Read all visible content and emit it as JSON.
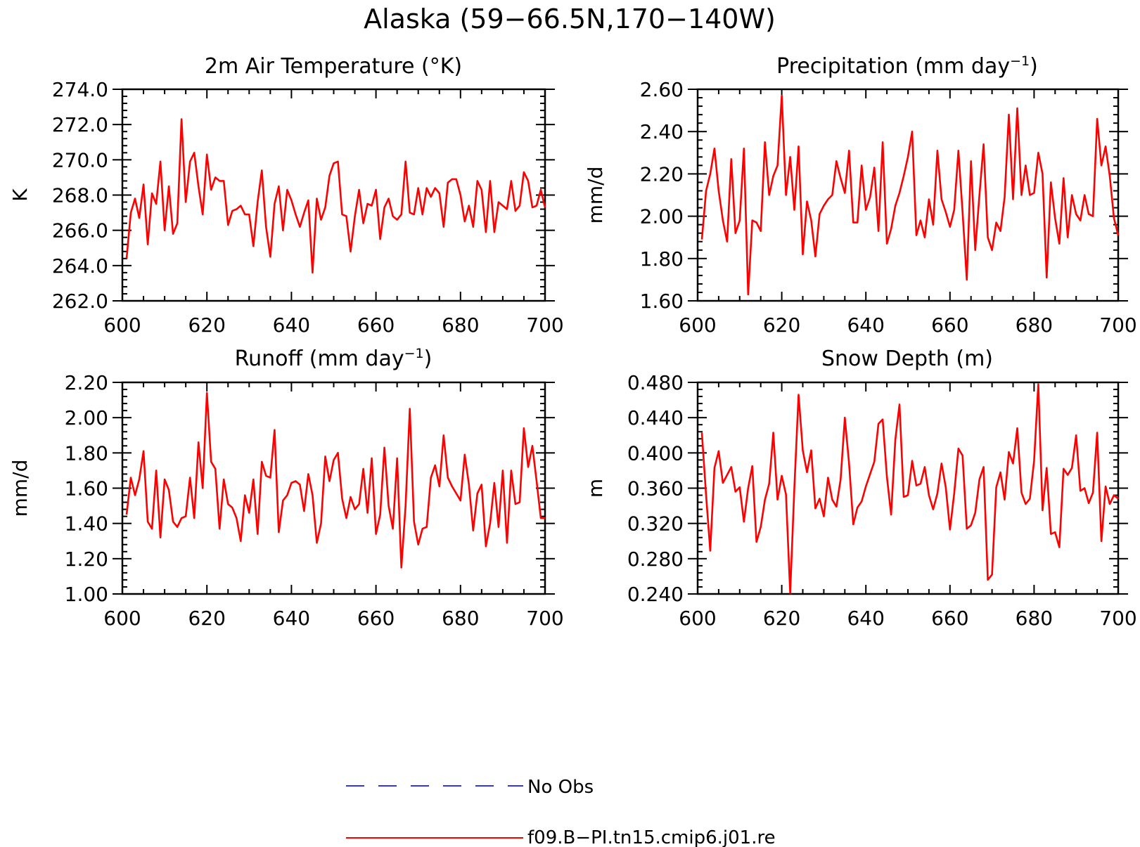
{
  "figure": {
    "title": "Alaska (59−66.5N,170−140W)"
  },
  "legend": {
    "placement": "bottom-center",
    "entries": [
      {
        "label": "No Obs",
        "color": "#3333ff",
        "style": "dashed"
      },
      {
        "label": "f09.B−PI.tn15.cmip6.j01.re",
        "color": "#ff0000",
        "style": "solid"
      }
    ]
  },
  "chart_data": [
    {
      "type": "line",
      "title": "2m Air Temperature (°K)",
      "title_sup": "",
      "title_tail": "",
      "ylabel": "K",
      "xlim": [
        600,
        700
      ],
      "ylim": [
        262.0,
        274.0
      ],
      "xticks": [
        600,
        620,
        640,
        660,
        680,
        700
      ],
      "yticks": [
        262.0,
        264.0,
        266.0,
        268.0,
        270.0,
        272.0,
        274.0
      ],
      "y_decimals": 1,
      "grid": false,
      "series": [
        {
          "color": "#ff0000",
          "x": [
            601,
            602,
            603,
            604,
            605,
            606,
            607,
            608,
            609,
            610,
            611,
            612,
            613,
            614,
            615,
            616,
            617,
            618,
            619,
            620,
            621,
            622,
            623,
            624,
            625,
            626,
            627,
            628,
            629,
            630,
            631,
            632,
            633,
            634,
            635,
            636,
            637,
            638,
            639,
            640,
            641,
            642,
            643,
            644,
            645,
            646,
            647,
            648,
            649,
            650,
            651,
            652,
            653,
            654,
            655,
            656,
            657,
            658,
            659,
            660,
            661,
            662,
            663,
            664,
            665,
            666,
            667,
            668,
            669,
            670,
            671,
            672,
            673,
            674,
            675,
            676,
            677,
            678,
            679,
            680,
            681,
            682,
            683,
            684,
            685,
            686,
            687,
            688,
            689,
            690,
            691,
            692,
            693,
            694,
            695,
            696,
            697,
            698,
            699,
            700
          ],
          "values": [
            264.4,
            267.0,
            267.8,
            266.7,
            268.6,
            265.2,
            268.1,
            267.5,
            269.9,
            266.0,
            268.5,
            265.8,
            266.4,
            272.3,
            267.6,
            269.9,
            270.4,
            268.5,
            266.9,
            270.3,
            268.3,
            269.0,
            268.8,
            268.8,
            266.3,
            267.1,
            267.2,
            267.4,
            266.9,
            266.9,
            265.1,
            267.6,
            269.4,
            266.2,
            264.5,
            267.5,
            268.5,
            266.0,
            268.3,
            267.7,
            266.9,
            266.2,
            267.0,
            267.7,
            263.6,
            267.8,
            266.6,
            267.3,
            269.1,
            269.8,
            269.9,
            266.9,
            266.8,
            264.8,
            266.8,
            268.3,
            266.4,
            267.5,
            267.4,
            268.3,
            265.5,
            267.3,
            267.8,
            266.8,
            266.6,
            266.9,
            269.9,
            267.0,
            266.9,
            268.4,
            266.9,
            268.4,
            267.9,
            268.4,
            268.1,
            266.2,
            268.7,
            268.9,
            268.9,
            268.0,
            266.5,
            267.4,
            266.2,
            268.8,
            268.3,
            265.9,
            268.8,
            265.9,
            267.6,
            267.4,
            267.2,
            268.8,
            267.1,
            267.4,
            269.3,
            268.8,
            267.3,
            267.4,
            268.3,
            267.3
          ]
        }
      ]
    },
    {
      "type": "line",
      "title": "Precipitation (mm day",
      "title_sup": "−1",
      "title_tail": ")",
      "ylabel": "mm/d",
      "xlim": [
        600,
        700
      ],
      "ylim": [
        1.6,
        2.6
      ],
      "xticks": [
        600,
        620,
        640,
        660,
        680,
        700
      ],
      "yticks": [
        1.6,
        1.8,
        2.0,
        2.2,
        2.4,
        2.6
      ],
      "y_decimals": 2,
      "grid": false,
      "series": [
        {
          "color": "#ff0000",
          "x": [
            601,
            602,
            603,
            604,
            605,
            606,
            607,
            608,
            609,
            610,
            611,
            612,
            613,
            614,
            615,
            616,
            617,
            618,
            619,
            620,
            621,
            622,
            623,
            624,
            625,
            626,
            627,
            628,
            629,
            630,
            631,
            632,
            633,
            634,
            635,
            636,
            637,
            638,
            639,
            640,
            641,
            642,
            643,
            644,
            645,
            646,
            647,
            648,
            649,
            650,
            651,
            652,
            653,
            654,
            655,
            656,
            657,
            658,
            659,
            660,
            661,
            662,
            663,
            664,
            665,
            666,
            667,
            668,
            669,
            670,
            671,
            672,
            673,
            674,
            675,
            676,
            677,
            678,
            679,
            680,
            681,
            682,
            683,
            684,
            685,
            686,
            687,
            688,
            689,
            690,
            691,
            692,
            693,
            694,
            695,
            696,
            697,
            698,
            699,
            700
          ],
          "values": [
            1.89,
            2.12,
            2.2,
            2.32,
            2.12,
            1.98,
            1.88,
            2.27,
            1.92,
            1.98,
            2.32,
            1.63,
            1.98,
            1.97,
            1.93,
            2.35,
            2.1,
            2.19,
            2.24,
            2.57,
            2.1,
            2.28,
            2.03,
            2.33,
            1.82,
            2.07,
            1.98,
            1.81,
            2.01,
            2.05,
            2.08,
            2.1,
            2.26,
            2.18,
            2.11,
            2.31,
            1.97,
            1.97,
            2.24,
            2.03,
            2.09,
            2.23,
            1.93,
            2.35,
            1.87,
            1.94,
            2.05,
            2.11,
            2.19,
            2.28,
            2.4,
            1.91,
            1.98,
            1.9,
            2.08,
            1.96,
            2.31,
            2.08,
            2.02,
            1.95,
            2.03,
            2.31,
            2.02,
            1.7,
            2.26,
            1.84,
            2.1,
            2.34,
            1.9,
            1.84,
            1.97,
            1.93,
            2.09,
            2.48,
            2.08,
            2.51,
            2.1,
            2.24,
            2.1,
            2.11,
            2.3,
            2.2,
            1.71,
            2.16,
            1.99,
            1.87,
            2.18,
            1.9,
            2.1,
            2.01,
            1.98,
            2.1,
            2.01,
            2.0,
            2.46,
            2.24,
            2.33,
            2.19,
            1.99,
            1.91
          ]
        }
      ]
    },
    {
      "type": "line",
      "title": "Runoff (mm day",
      "title_sup": "−1",
      "title_tail": ")",
      "ylabel": "mm/d",
      "xlim": [
        600,
        700
      ],
      "ylim": [
        1.0,
        2.2
      ],
      "xticks": [
        600,
        620,
        640,
        660,
        680,
        700
      ],
      "yticks": [
        1.0,
        1.2,
        1.4,
        1.6,
        1.8,
        2.0,
        2.2
      ],
      "y_decimals": 2,
      "grid": false,
      "series": [
        {
          "color": "#ff0000",
          "x": [
            601,
            602,
            603,
            604,
            605,
            606,
            607,
            608,
            609,
            610,
            611,
            612,
            613,
            614,
            615,
            616,
            617,
            618,
            619,
            620,
            621,
            622,
            623,
            624,
            625,
            626,
            627,
            628,
            629,
            630,
            631,
            632,
            633,
            634,
            635,
            636,
            637,
            638,
            639,
            640,
            641,
            642,
            643,
            644,
            645,
            646,
            647,
            648,
            649,
            650,
            651,
            652,
            653,
            654,
            655,
            656,
            657,
            658,
            659,
            660,
            661,
            662,
            663,
            664,
            665,
            666,
            667,
            668,
            669,
            670,
            671,
            672,
            673,
            674,
            675,
            676,
            677,
            678,
            679,
            680,
            681,
            682,
            683,
            684,
            685,
            686,
            687,
            688,
            689,
            690,
            691,
            692,
            693,
            694,
            695,
            696,
            697,
            698,
            699,
            700
          ],
          "values": [
            1.45,
            1.66,
            1.56,
            1.65,
            1.81,
            1.41,
            1.37,
            1.7,
            1.32,
            1.65,
            1.59,
            1.41,
            1.38,
            1.43,
            1.44,
            1.66,
            1.43,
            1.86,
            1.6,
            2.14,
            1.75,
            1.71,
            1.37,
            1.65,
            1.51,
            1.49,
            1.43,
            1.3,
            1.56,
            1.46,
            1.65,
            1.34,
            1.75,
            1.67,
            1.66,
            1.93,
            1.35,
            1.53,
            1.56,
            1.63,
            1.64,
            1.62,
            1.47,
            1.68,
            1.56,
            1.29,
            1.4,
            1.78,
            1.64,
            1.76,
            1.8,
            1.54,
            1.43,
            1.55,
            1.48,
            1.51,
            1.71,
            1.46,
            1.77,
            1.34,
            1.45,
            1.83,
            1.5,
            1.37,
            1.77,
            1.15,
            1.5,
            2.05,
            1.41,
            1.28,
            1.37,
            1.38,
            1.66,
            1.73,
            1.61,
            1.9,
            1.66,
            1.61,
            1.57,
            1.53,
            1.79,
            1.62,
            1.36,
            1.57,
            1.62,
            1.27,
            1.4,
            1.63,
            1.38,
            1.7,
            1.29,
            1.7,
            1.51,
            1.52,
            1.94,
            1.72,
            1.84,
            1.64,
            1.43,
            1.43
          ]
        }
      ]
    },
    {
      "type": "line",
      "title": "Snow Depth (m)",
      "title_sup": "",
      "title_tail": "",
      "ylabel": "m",
      "xlim": [
        600,
        700
      ],
      "ylim": [
        0.24,
        0.48
      ],
      "xticks": [
        600,
        620,
        640,
        660,
        680,
        700
      ],
      "yticks": [
        0.24,
        0.28,
        0.32,
        0.36,
        0.4,
        0.44,
        0.48
      ],
      "y_decimals": 3,
      "grid": false,
      "series": [
        {
          "color": "#ff0000",
          "x": [
            601,
            602,
            603,
            604,
            605,
            606,
            607,
            608,
            609,
            610,
            611,
            612,
            613,
            614,
            615,
            616,
            617,
            618,
            619,
            620,
            621,
            622,
            623,
            624,
            625,
            626,
            627,
            628,
            629,
            630,
            631,
            632,
            633,
            634,
            635,
            636,
            637,
            638,
            639,
            640,
            641,
            642,
            643,
            644,
            645,
            646,
            647,
            648,
            649,
            650,
            651,
            652,
            653,
            654,
            655,
            656,
            657,
            658,
            659,
            660,
            661,
            662,
            663,
            664,
            665,
            666,
            667,
            668,
            669,
            670,
            671,
            672,
            673,
            674,
            675,
            676,
            677,
            678,
            679,
            680,
            681,
            682,
            683,
            684,
            685,
            686,
            687,
            688,
            689,
            690,
            691,
            692,
            693,
            694,
            695,
            696,
            697,
            698,
            699,
            700
          ],
          "values": [
            0.423,
            0.352,
            0.289,
            0.383,
            0.402,
            0.366,
            0.375,
            0.384,
            0.356,
            0.361,
            0.322,
            0.36,
            0.385,
            0.299,
            0.316,
            0.347,
            0.365,
            0.423,
            0.347,
            0.374,
            0.353,
            0.241,
            0.36,
            0.466,
            0.403,
            0.378,
            0.403,
            0.337,
            0.348,
            0.328,
            0.372,
            0.347,
            0.339,
            0.37,
            0.44,
            0.388,
            0.319,
            0.338,
            0.345,
            0.362,
            0.376,
            0.39,
            0.433,
            0.438,
            0.373,
            0.33,
            0.415,
            0.455,
            0.35,
            0.352,
            0.391,
            0.363,
            0.365,
            0.384,
            0.352,
            0.336,
            0.354,
            0.388,
            0.361,
            0.313,
            0.354,
            0.405,
            0.397,
            0.314,
            0.318,
            0.332,
            0.37,
            0.384,
            0.256,
            0.262,
            0.361,
            0.378,
            0.347,
            0.401,
            0.388,
            0.428,
            0.355,
            0.342,
            0.348,
            0.391,
            0.478,
            0.335,
            0.383,
            0.308,
            0.31,
            0.293,
            0.382,
            0.375,
            0.383,
            0.42,
            0.357,
            0.36,
            0.343,
            0.355,
            0.423,
            0.3,
            0.362,
            0.342,
            0.352,
            0.348
          ]
        }
      ]
    }
  ]
}
